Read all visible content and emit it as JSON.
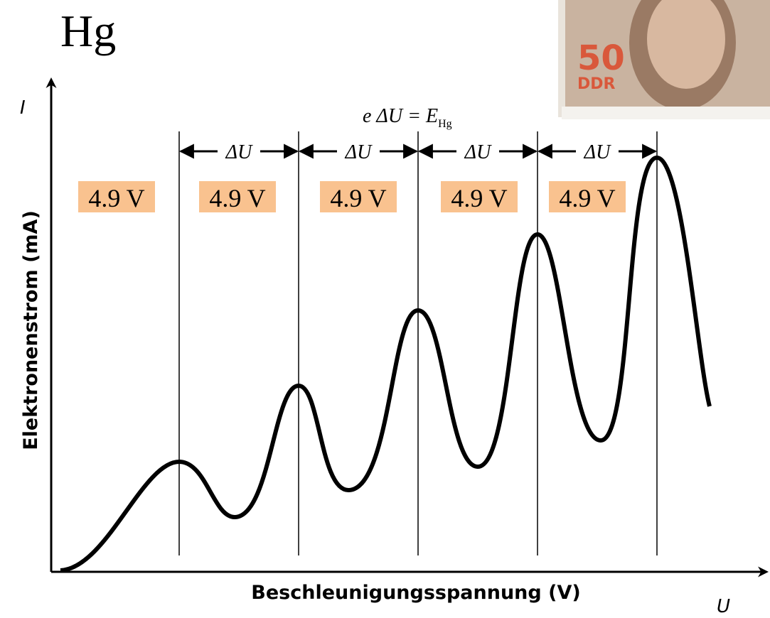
{
  "title": "Hg",
  "axes": {
    "y_symbol": "I",
    "x_symbol": "U",
    "y_label": "Elektronenstrom (mA)",
    "x_label": "Beschleunigungsspannung (V)"
  },
  "equation": {
    "lhs": "e ΔU = ",
    "rhs": "E",
    "subscript": "Hg"
  },
  "intervals": [
    "ΔU",
    "ΔU",
    "ΔU",
    "ΔU"
  ],
  "voltage_labels": [
    "4.9 V",
    "4.9 V",
    "4.9 V",
    "4.9 V",
    "4.9 V"
  ],
  "stamp": {
    "value": "50",
    "country": "DDR"
  }
}
